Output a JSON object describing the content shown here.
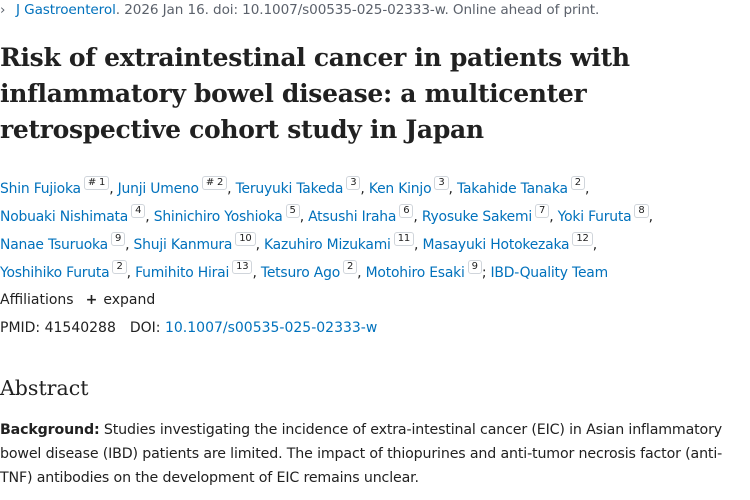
{
  "citation": {
    "journal": "J Gastroenterol",
    "rest": ". 2026 Jan 16. doi: 10.1007/s00535-025-02333-w. Online ahead of print."
  },
  "title": "Risk of extraintestinal cancer in patients with inflammatory bowel disease: a multicenter retrospective cohort study in Japan",
  "authors": [
    {
      "name": "Shin Fujioka",
      "sup": "# 1"
    },
    {
      "name": "Junji Umeno",
      "sup": "# 2"
    },
    {
      "name": "Teruyuki Takeda",
      "sup": "3"
    },
    {
      "name": "Ken Kinjo",
      "sup": "3"
    },
    {
      "name": "Takahide Tanaka",
      "sup": "2"
    },
    {
      "name": "Nobuaki Nishimata",
      "sup": "4"
    },
    {
      "name": "Shinichiro Yoshioka",
      "sup": "5"
    },
    {
      "name": "Atsushi Iraha",
      "sup": "6"
    },
    {
      "name": "Ryosuke Sakemi",
      "sup": "7"
    },
    {
      "name": "Yoki Furuta",
      "sup": "8"
    },
    {
      "name": "Nanae Tsuruoka",
      "sup": "9"
    },
    {
      "name": "Shuji Kanmura",
      "sup": "10"
    },
    {
      "name": "Kazuhiro Mizukami",
      "sup": "11"
    },
    {
      "name": "Masayuki Hotokezaka",
      "sup": "12"
    },
    {
      "name": "Yoshihiko Furuta",
      "sup": "2"
    },
    {
      "name": "Fumihito Hirai",
      "sup": "13"
    },
    {
      "name": "Tetsuro Ago",
      "sup": "2"
    },
    {
      "name": "Motohiro Esaki",
      "sup": "9"
    },
    {
      "name": "IBD-Quality Team",
      "sup": ""
    }
  ],
  "affiliations": {
    "label": "Affiliations",
    "expand": "expand"
  },
  "ids": {
    "pmid_label": "PMID:",
    "pmid": "41540288",
    "doi_label": "DOI:",
    "doi": "10.1007/s00535-025-02333-w"
  },
  "abstract": {
    "heading": "Abstract",
    "background_label": "Background:",
    "background_text": "Studies investigating the incidence of extra-intestinal cancer (EIC) in Asian inflammatory bowel disease (IBD) patients are limited. The impact of thiopurines and anti-tumor necrosis factor (anti-TNF) antibodies on the development of EIC remains unclear."
  }
}
